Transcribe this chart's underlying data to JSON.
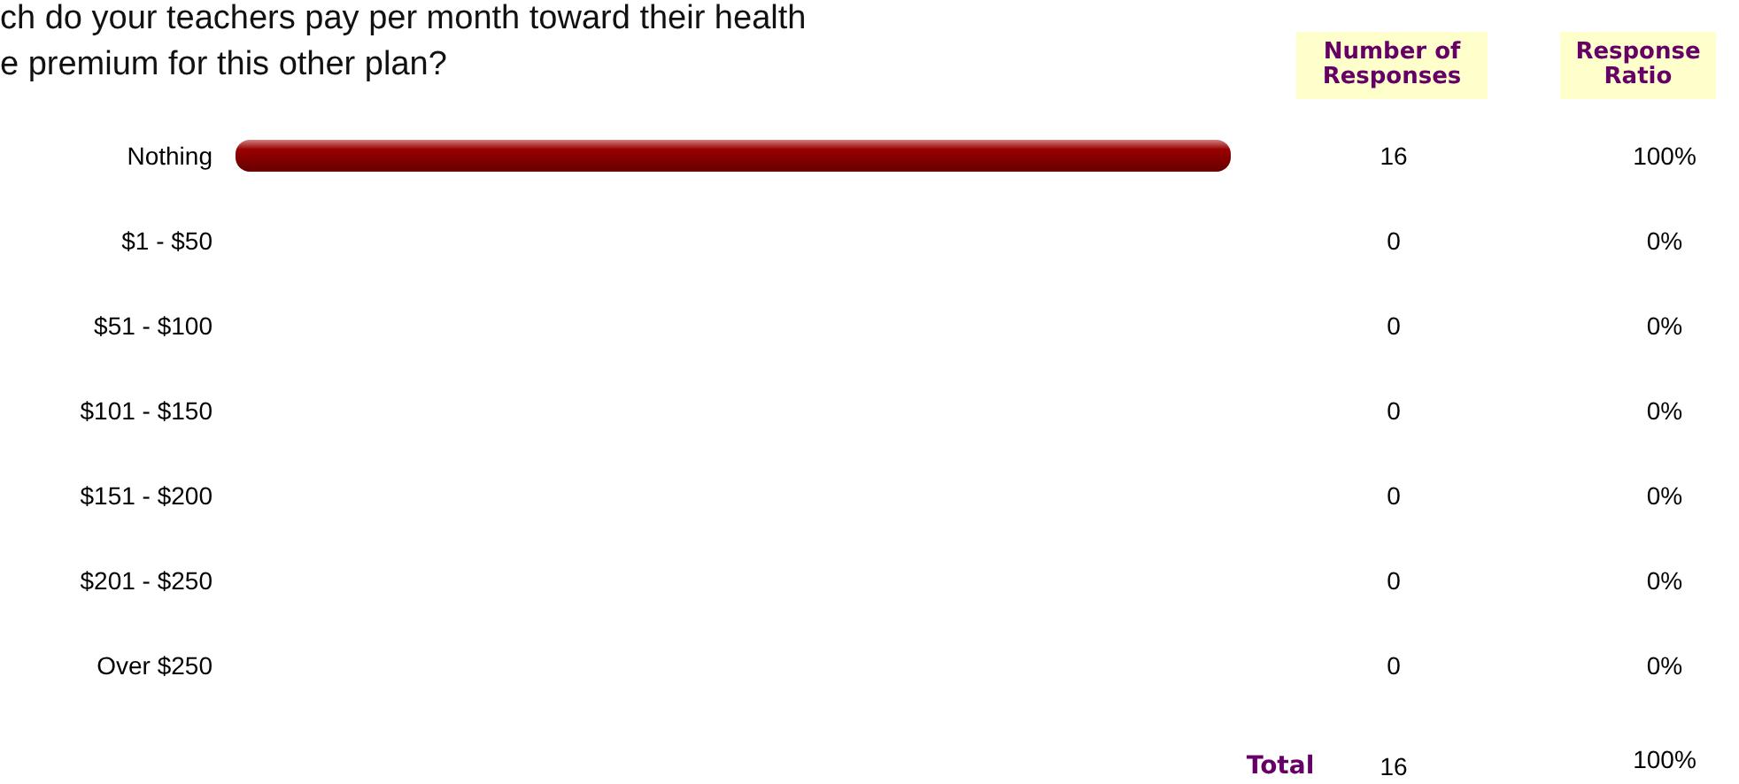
{
  "chart_data": {
    "type": "bar",
    "orientation": "horizontal",
    "title": "ch do your teachers pay per month toward their health\ne premium for this other plan?",
    "categories": [
      "Nothing",
      "$1 - $50",
      "$51 - $100",
      "$101 - $150",
      "$151 - $200",
      "$201 - $250",
      "Over $250"
    ],
    "values": [
      16,
      0,
      0,
      0,
      0,
      0,
      0
    ],
    "color": "#990000",
    "data_labels": true,
    "annotations": [
      "Number of\nResponses",
      "Response\nRatio",
      "Total",
      "16",
      "100%",
      "100%",
      "0%",
      "0%",
      "0%",
      "0%",
      "0%",
      "0%"
    ]
  }
}
